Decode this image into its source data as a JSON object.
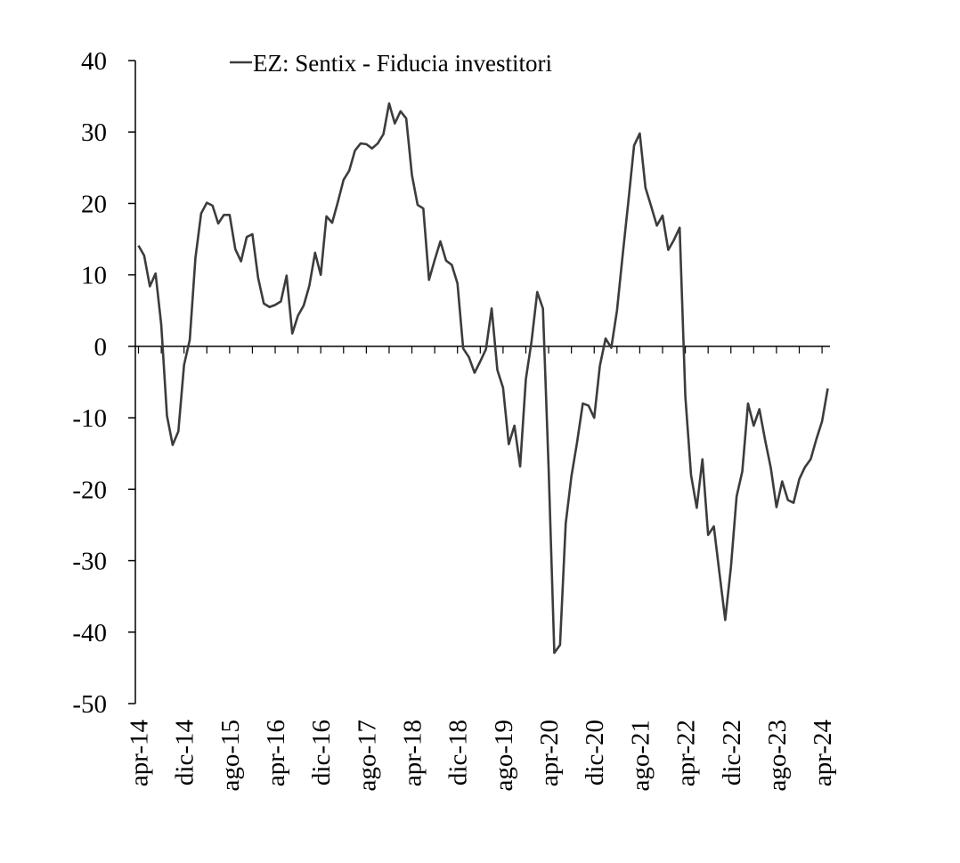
{
  "chart_data": {
    "type": "line",
    "title": "",
    "xlabel": "",
    "ylabel": "",
    "ylim": [
      -50,
      40
    ],
    "y_ticks": [
      "40",
      "30",
      "20",
      "10",
      "0",
      "-10",
      "-20",
      "-30",
      "-40",
      "-50"
    ],
    "x_tick_labels": [
      "apr-14",
      "dic-14",
      "ago-15",
      "apr-16",
      "dic-16",
      "ago-17",
      "apr-18",
      "dic-18",
      "ago-19",
      "apr-20",
      "dic-20",
      "ago-21",
      "apr-22",
      "dic-22",
      "ago-23",
      "apr-24"
    ],
    "legend": "top-left",
    "grid": false,
    "colors": {
      "line": "#3c3c3c",
      "axis": "#000000"
    },
    "series": [
      {
        "name": "EZ: Sentix - Fiducia investitori",
        "values": [
          14.1,
          12.7,
          8.4,
          10.2,
          3.0,
          -9.7,
          -13.8,
          -11.9,
          -2.6,
          0.9,
          12.4,
          18.6,
          20.1,
          19.7,
          17.2,
          18.4,
          18.4,
          13.6,
          11.9,
          15.3,
          15.7,
          9.6,
          6.0,
          5.5,
          5.8,
          6.3,
          9.9,
          1.8,
          4.3,
          5.7,
          8.5,
          13.1,
          10.0,
          18.2,
          17.3,
          20.2,
          23.3,
          24.6,
          27.4,
          28.4,
          28.3,
          27.7,
          28.4,
          29.7,
          34.0,
          31.2,
          32.9,
          31.9,
          24.0,
          19.8,
          19.3,
          9.3,
          12.1,
          14.7,
          12.0,
          11.4,
          8.8,
          -0.3,
          -1.5,
          -3.7,
          -2.1,
          -0.4,
          5.3,
          -3.3,
          -5.8,
          -13.7,
          -11.1,
          -16.8,
          -4.6,
          0.7,
          7.6,
          5.3,
          -17.1,
          -42.9,
          -41.8,
          -24.8,
          -18.2,
          -13.4,
          -8.0,
          -8.3,
          -10.0,
          -2.7,
          1.1,
          -0.2,
          5.0,
          12.8,
          20.3,
          28.1,
          29.8,
          22.2,
          19.6,
          16.9,
          18.3,
          13.5,
          14.9,
          16.6,
          -7.0,
          -18.0,
          -22.6,
          -15.8,
          -26.4,
          -25.2,
          -31.8,
          -38.3,
          -30.9,
          -21.0,
          -17.5,
          -8.0,
          -11.1,
          -8.8,
          -13.1,
          -17.0,
          -22.5,
          -18.9,
          -21.5,
          -21.9,
          -18.6,
          -16.9,
          -15.8,
          -13.0,
          -10.5,
          -5.9
        ]
      }
    ]
  }
}
